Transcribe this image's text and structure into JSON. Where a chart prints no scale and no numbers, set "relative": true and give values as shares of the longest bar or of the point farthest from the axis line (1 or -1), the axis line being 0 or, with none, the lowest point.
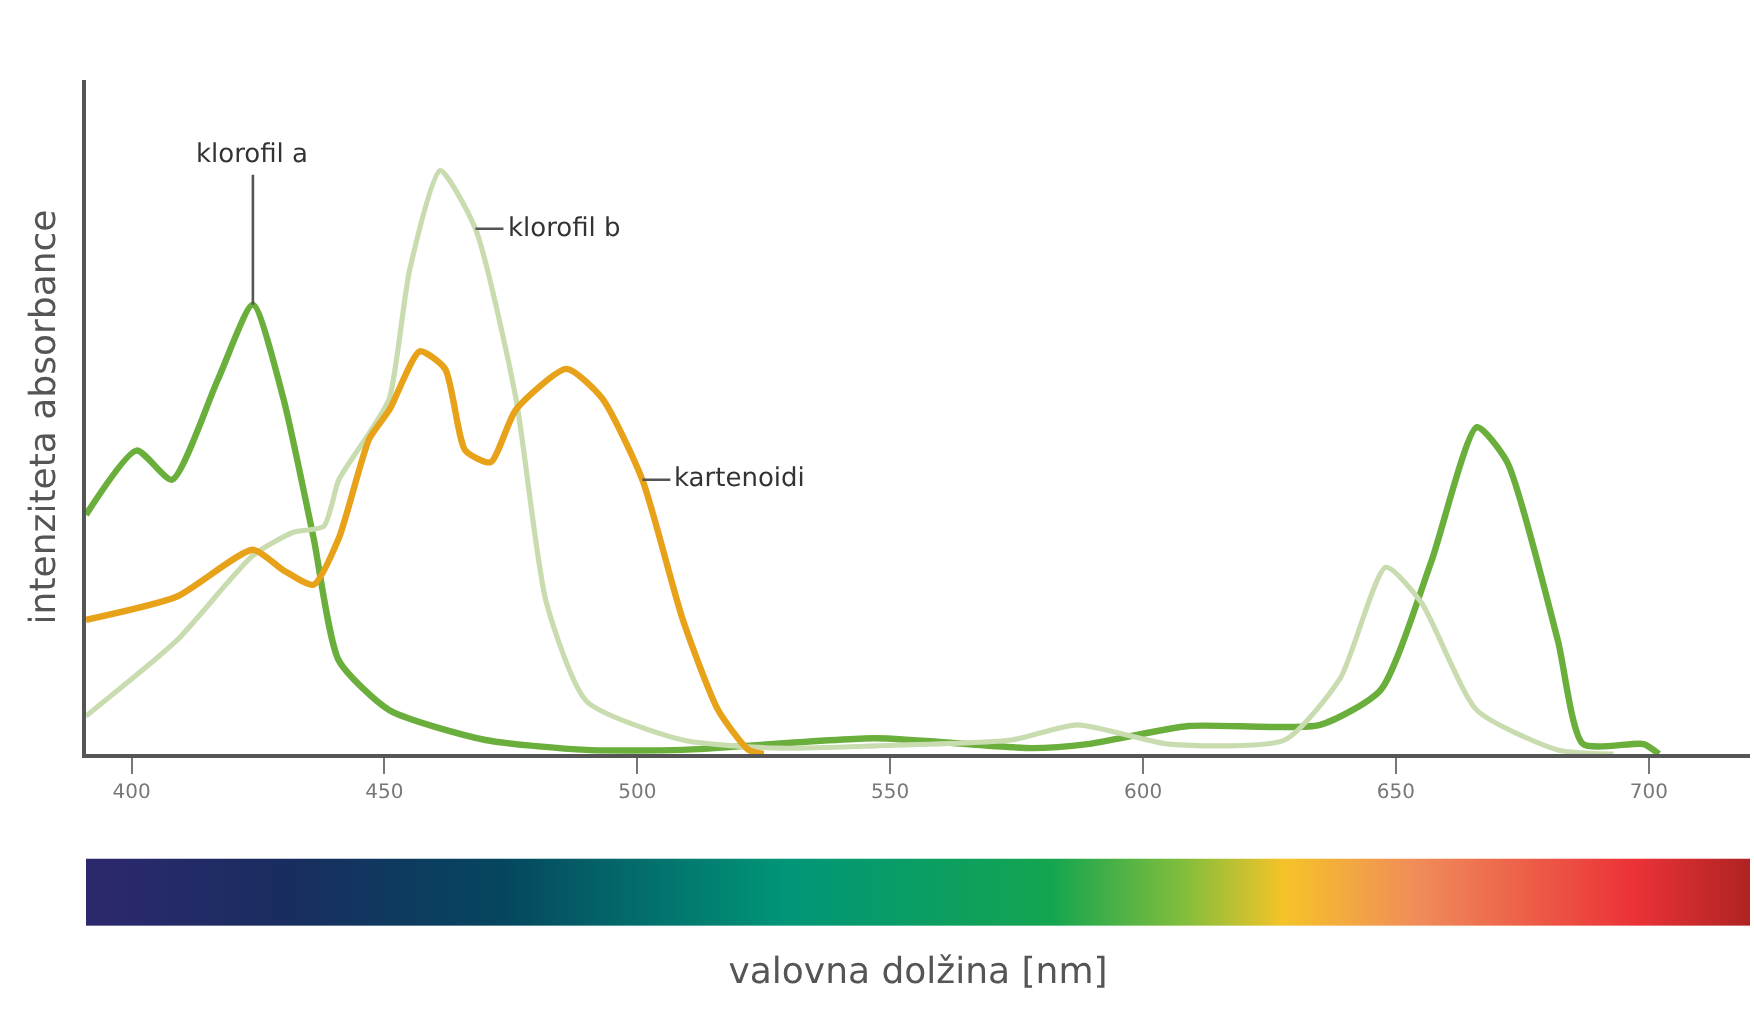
{
  "chart_data": {
    "type": "line",
    "relative": true,
    "xlabel": "valovna dolžina [nm]",
    "ylabel": "intenziteta absorbance",
    "xlim": [
      391,
      720
    ],
    "xticks": [
      400,
      450,
      500,
      550,
      600,
      650,
      700
    ],
    "marker": "none",
    "line_style": "solid",
    "series": [
      {
        "name": "klorofil a",
        "color": "#6aae3c",
        "x": [
          391,
          401,
          408,
          417,
          424,
          430,
          436,
          441,
          451,
          470,
          490,
          509,
          547,
          578,
          589,
          609,
          635,
          647,
          657,
          666,
          672,
          682,
          687,
          699,
          702
        ],
        "values": [
          0.41,
          0.52,
          0.47,
          0.64,
          0.77,
          0.61,
          0.37,
          0.16,
          0.075,
          0.024,
          0.007,
          0.007,
          0.027,
          0.01,
          0.017,
          0.048,
          0.05,
          0.11,
          0.33,
          0.56,
          0.5,
          0.195,
          0.017,
          0.017,
          0
        ]
      },
      {
        "name": "klorofil b",
        "color": "#c9dcb0",
        "x": [
          391,
          409,
          424,
          432,
          438,
          441,
          447,
          451,
          455,
          461,
          468,
          476,
          482,
          490,
          509,
          528,
          547,
          574,
          587,
          605,
          628,
          639,
          648,
          655,
          666,
          682,
          693
        ],
        "values": [
          0.065,
          0.195,
          0.34,
          0.38,
          0.39,
          0.47,
          0.55,
          0.61,
          0.83,
          1.0,
          0.9,
          0.61,
          0.26,
          0.09,
          0.024,
          0.01,
          0.014,
          0.024,
          0.05,
          0.017,
          0.024,
          0.13,
          0.32,
          0.26,
          0.075,
          0.007,
          0
        ]
      },
      {
        "name": "kartenoidi",
        "color": "#e8a21a",
        "x": [
          391,
          409,
          424,
          430,
          436,
          441,
          447,
          451,
          457,
          462,
          466,
          471,
          476,
          486,
          493,
          501,
          509,
          516,
          522,
          525
        ],
        "values": [
          0.23,
          0.27,
          0.35,
          0.315,
          0.29,
          0.37,
          0.54,
          0.59,
          0.69,
          0.66,
          0.52,
          0.5,
          0.59,
          0.66,
          0.61,
          0.47,
          0.23,
          0.075,
          0.007,
          0
        ]
      }
    ]
  }
}
